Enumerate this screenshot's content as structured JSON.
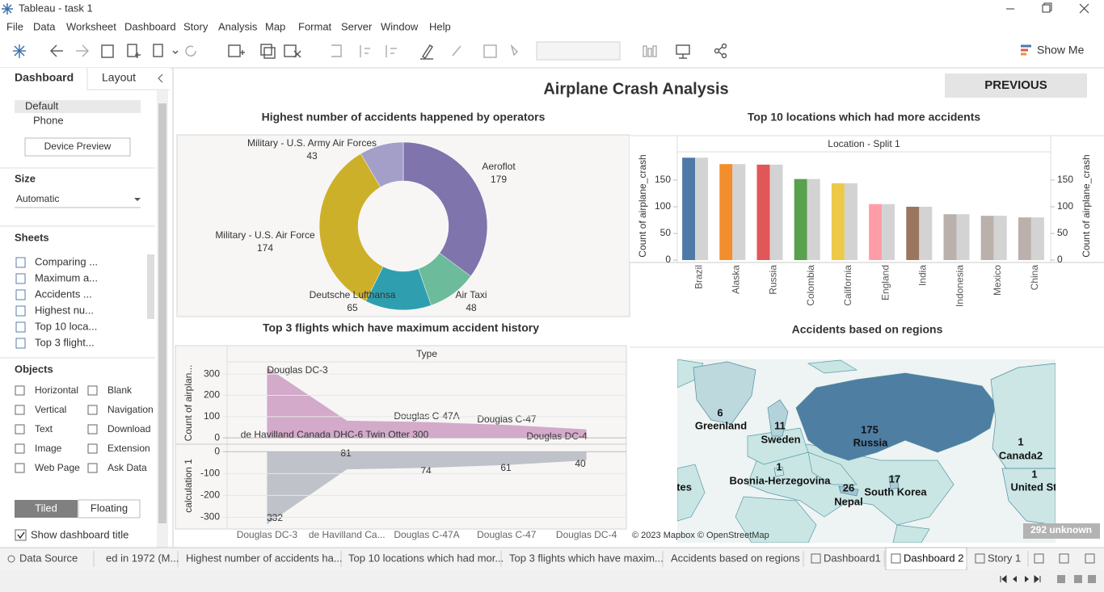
{
  "window": {
    "title": "Tableau - task 1"
  },
  "menu": [
    "File",
    "Data",
    "Worksheet",
    "Dashboard",
    "Story",
    "Analysis",
    "Map",
    "Format",
    "Server",
    "Window",
    "Help"
  ],
  "toolbar": {
    "show_me": "Show Me"
  },
  "sidebar": {
    "tabs": [
      "Dashboard",
      "Layout"
    ],
    "devices": [
      "Default",
      "Phone"
    ],
    "device_preview": "Device Preview",
    "size_heading": "Size",
    "size_value": "Automatic",
    "sheets_heading": "Sheets",
    "sheets": [
      "Comparing ...",
      "Maximum a...",
      "Accidents ...",
      "Highest nu...",
      "Top 10 loca...",
      "Top 3 flight..."
    ],
    "objects_heading": "Objects",
    "objects": [
      "Horizontal",
      "Blank",
      "Vertical",
      "Navigation",
      "Text",
      "Download",
      "Image",
      "Extension",
      "Web Page",
      "Ask Data"
    ],
    "layout_modes": [
      "Tiled",
      "Floating"
    ],
    "show_title": "Show dashboard title"
  },
  "dashboard": {
    "title": "Airplane Crash Analysis",
    "button": "PREVIOUS",
    "donut": {
      "type": "pie",
      "title": "Highest number of accidents happened by operators",
      "categories": [
        "Aeroflot",
        "Air Taxi",
        "Deutsche Lufthansa",
        "Military - U.S. Air Force",
        "Military - U.S. Army Air Forces"
      ],
      "values": [
        179,
        48,
        65,
        174,
        43
      ],
      "colors": [
        "#8074ad",
        "#6cbb9a",
        "#2f9fb0",
        "#cdb02a",
        "#a49fc9"
      ]
    },
    "bars": {
      "type": "bar",
      "title": "Top 10 locations which had more accidents",
      "header": "Location - Split 1",
      "axis_title": "Count of airplane_crash",
      "categories": [
        "Brazil",
        "Alaska",
        "Russia",
        "Colombia",
        "California",
        "England",
        "India",
        "Indonesia",
        "Mexico",
        "China"
      ],
      "values": [
        192,
        180,
        179,
        152,
        144,
        105,
        100,
        86,
        83,
        80
      ],
      "colors": [
        "#4e79a7",
        "#f28e2b",
        "#e15759",
        "#59a14f",
        "#edc948",
        "#ff9da7",
        "#9c755f",
        "#bab0ac",
        "#bab0ac",
        "#bab0ac"
      ],
      "second_color": "#d3d3d3",
      "ylim": [
        0,
        203
      ],
      "yticks": [
        0,
        50,
        100,
        150
      ]
    },
    "area": {
      "type": "area",
      "title": "Top 3 flights which have maximum accident history",
      "header": "Type",
      "categories": [
        "Douglas DC-3",
        "de Havilland Canada DHC-6 Twin Otter 300",
        "Douglas C-47A",
        "Douglas C-47",
        "Douglas DC-4"
      ],
      "category_labels": [
        "Douglas DC-3",
        "de Havilland Ca...",
        "Douglas C-47A",
        "Douglas C-47",
        "Douglas DC-4"
      ],
      "panes": [
        {
          "axis_title": "Count of airplan...",
          "ylim": [
            -30,
            358
          ],
          "yticks": [
            0,
            100,
            200,
            300
          ],
          "color": "#cc9cc2",
          "values": [
            332,
            81,
            74,
            61,
            40
          ]
        },
        {
          "axis_title": "calculation 1",
          "ylim": [
            -346,
            34
          ],
          "yticks": [
            0,
            -100,
            -200,
            -300
          ],
          "color": "#b5b8bf",
          "values": [
            -332,
            -81,
            -74,
            -61,
            -40
          ],
          "value_labels": [
            "332",
            "81",
            "74",
            "61",
            "40"
          ]
        }
      ]
    },
    "map": {
      "type": "map",
      "title": "Accidents based on regions",
      "credit": "© 2023 Mapbox © OpenStreetMap",
      "unknown": "292 unknown",
      "regions": [
        {
          "name": "Greenland",
          "value": 6
        },
        {
          "name": "Sweden",
          "value": 11
        },
        {
          "name": "Russia",
          "value": 175
        },
        {
          "name": "Bosnia-Herzegovina",
          "value": 1
        },
        {
          "name": "Nepal",
          "value": 26
        },
        {
          "name": "South Korea",
          "value": 17
        },
        {
          "name": "Canada2",
          "value": 1
        },
        {
          "name": "United States",
          "value": 1
        }
      ]
    }
  },
  "tabs": [
    "Data Source",
    "ed in 1972 (M...",
    "Highest number of accidents ha...",
    "Top 10 locations which had mor...",
    "Top 3 flights which have maxim...",
    "Accidents based on regions",
    "Dashboard1",
    "Dashboard 2",
    "Story 1"
  ]
}
